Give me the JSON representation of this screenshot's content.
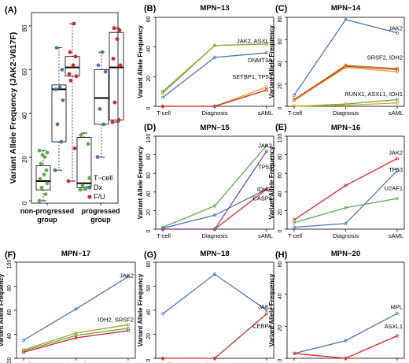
{
  "colors": {
    "tcell": "#5fac4a",
    "dx": "#4a77b5",
    "fu": "#d6252a",
    "olive": "#a5a32a",
    "purple": "#7f4da0",
    "orange": "#e6a21d",
    "axis": "#000000"
  },
  "chart_data": [
    {
      "id": "A",
      "panel_label": "(A)",
      "type": "boxplot",
      "ylabel": "Variant Allele Frequency (JAK2-V617F)",
      "ylim": [
        0,
        85
      ],
      "yticks": [
        0,
        20,
        40,
        60,
        80
      ],
      "groups": [
        {
          "label_line1": "non-progressed",
          "label_line2": "group",
          "boxes": [
            {
              "series": "T-cell",
              "q1": 5,
              "median": 9,
              "q3": 16,
              "whisker_low": 0,
              "whisker_high": 23,
              "points": [
                0,
                3,
                6,
                8,
                10,
                12,
                14,
                17,
                20,
                21,
                22,
                23
              ]
            },
            {
              "series": "Dx",
              "q1": 27,
              "median": 51,
              "q3": 53,
              "whisker_low": 14,
              "whisker_high": 70,
              "points": [
                14,
                27,
                35,
                46,
                51,
                52,
                60,
                70
              ]
            },
            {
              "series": "F/U",
              "q1": 57,
              "median": 61,
              "q3": 66,
              "whisker_low": 9,
              "whisker_high": 81,
              "points": [
                9,
                24,
                55,
                57,
                58,
                62,
                66,
                68,
                81
              ]
            }
          ]
        },
        {
          "label_line1": "progressed",
          "label_line2": "group",
          "boxes": [
            {
              "series": "T-cell",
              "q1": 6,
              "median": 8,
              "q3": 29,
              "whisker_low": 5,
              "whisker_high": 31,
              "points": [
                5,
                6,
                7,
                26,
                30
              ]
            },
            {
              "series": "Dx",
              "q1": 35,
              "median": 47,
              "q3": 60,
              "whisker_low": 20,
              "whisker_high": 68,
              "points": [
                20,
                35,
                42,
                59,
                62,
                68
              ]
            },
            {
              "series": "F/U",
              "q1": 37,
              "median": 61,
              "q3": 77,
              "whisker_low": 36,
              "whisker_high": 79,
              "points": [
                36,
                37,
                45,
                62,
                65,
                74,
                78,
                79
              ]
            }
          ]
        }
      ],
      "legend": [
        {
          "name": "T−cell",
          "color": "tcell"
        },
        {
          "name": "Dx",
          "color": "dx"
        },
        {
          "name": "F/U",
          "color": "fu"
        }
      ]
    },
    {
      "id": "B",
      "panel_label": "(B)",
      "title": "MPN−13",
      "type": "line",
      "categories": [
        "T-cell",
        "Diagnosis",
        "sAML"
      ],
      "ylabel": "Variant Allele Frequency",
      "ylim": [
        0,
        60
      ],
      "yticks": [
        0,
        20,
        40,
        60
      ],
      "series": [
        {
          "color": "tcell",
          "values": [
            10,
            41,
            42
          ]
        },
        {
          "color": "olive",
          "values": [
            9,
            41,
            42
          ]
        },
        {
          "color": "dx",
          "values": [
            6,
            33,
            36
          ]
        },
        {
          "color": "orange",
          "values": [
            0,
            0,
            13
          ]
        },
        {
          "color": "fu",
          "values": [
            0,
            0,
            11
          ]
        }
      ],
      "annotations": [
        {
          "text": "JAK2, ASXL1",
          "y": 44
        },
        {
          "text": "DNMT3A",
          "y": 31
        },
        {
          "text": "SETBP1, TP53",
          "y": 20
        }
      ]
    },
    {
      "id": "C",
      "panel_label": "(C)",
      "title": "MPN−14",
      "type": "line",
      "categories": [
        "T-cell",
        "Diagnosis",
        "sAML"
      ],
      "ylabel": "Variant Allele Frequency",
      "ylim": [
        0,
        80
      ],
      "yticks": [
        0,
        20,
        40,
        60,
        80
      ],
      "series": [
        {
          "color": "dx",
          "values": [
            10,
            78,
            66
          ]
        },
        {
          "color": "olive",
          "values": [
            6,
            37,
            34
          ]
        },
        {
          "color": "fu",
          "values": [
            6,
            36,
            33
          ]
        },
        {
          "color": "orange",
          "values": [
            5,
            35,
            31
          ]
        },
        {
          "color": "tcell",
          "values": [
            0,
            2,
            6
          ]
        },
        {
          "color": "orange",
          "values": [
            0,
            1,
            3
          ]
        }
      ],
      "annotations": [
        {
          "text": "JAK2",
          "y": 70
        },
        {
          "text": "SRSF2, IDH2",
          "y": 44
        },
        {
          "text": "RUNX1, ASXL1, IDH1",
          "y": 11
        }
      ]
    },
    {
      "id": "D",
      "panel_label": "(D)",
      "title": "MPN−15",
      "type": "line",
      "categories": [
        "T-cell",
        "Diagnosis",
        "sAML"
      ],
      "ylabel": "Variant Allele Frequency",
      "ylim": [
        0,
        100
      ],
      "yticks": [
        0,
        20,
        40,
        60,
        80,
        100
      ],
      "series": [
        {
          "color": "tcell",
          "values": [
            2,
            25,
            90
          ]
        },
        {
          "color": "dx",
          "values": [
            1,
            15,
            43
          ]
        },
        {
          "color": "fu",
          "values": [
            0,
            0,
            43
          ]
        },
        {
          "color": "purple",
          "values": [
            0,
            0,
            84
          ]
        }
      ],
      "annotations": [
        {
          "text": "JAK2",
          "y": 90
        },
        {
          "text": "TP53",
          "y": 67
        },
        {
          "text": "IDH2,",
          "y": 43
        },
        {
          "text": "CASP8",
          "y": 33
        }
      ]
    },
    {
      "id": "E",
      "panel_label": "(E)",
      "title": "MPN−16",
      "type": "line",
      "categories": [
        "T-cell",
        "Diagnosis",
        "sAML"
      ],
      "ylabel": "Variant Allele Frequency",
      "ylim": [
        0,
        100
      ],
      "yticks": [
        0,
        20,
        40,
        60,
        80,
        100
      ],
      "series": [
        {
          "color": "fu",
          "values": [
            10,
            47,
            76
          ]
        },
        {
          "color": "tcell",
          "values": [
            7,
            23,
            33
          ]
        },
        {
          "color": "dx",
          "values": [
            2,
            6,
            63
          ]
        }
      ],
      "annotations": [
        {
          "text": "JAK2",
          "y": 82
        },
        {
          "text": "TP53",
          "y": 64
        },
        {
          "text": "U2AF1",
          "y": 44
        }
      ]
    },
    {
      "id": "F",
      "panel_label": "(F)",
      "title": "MPN−17",
      "type": "line",
      "categories": [
        "T-cell",
        "Diagnosis",
        "sAML"
      ],
      "ylabel": "Variant Allele Frequency",
      "ylim": [
        20,
        100
      ],
      "yticks": [
        20,
        40,
        60,
        80,
        100
      ],
      "series": [
        {
          "color": "dx",
          "values": [
            35,
            61,
            88
          ]
        },
        {
          "color": "olive",
          "values": [
            27,
            41,
            48
          ]
        },
        {
          "color": "tcell",
          "values": [
            26,
            39,
            45
          ]
        },
        {
          "color": "fu",
          "values": [
            25,
            37,
            43
          ]
        }
      ],
      "annotations": [
        {
          "text": "JAK2",
          "y": 89
        },
        {
          "text": "IDH2, SRSF2",
          "y": 52
        }
      ]
    },
    {
      "id": "G",
      "panel_label": "(G)",
      "title": "MPN−18",
      "type": "line",
      "categories": [
        "T-cell",
        "Diagnosis",
        "sAML"
      ],
      "ylabel": "Variant Allele Frequency",
      "ylim": [
        0,
        80
      ],
      "yticks": [
        0,
        20,
        40,
        60,
        80
      ],
      "series": [
        {
          "color": "dx",
          "values": [
            37,
            70,
            40
          ]
        },
        {
          "color": "fu",
          "values": [
            0,
            0,
            37
          ]
        }
      ],
      "annotations": [
        {
          "text": "JAK2",
          "y": 43
        },
        {
          "text": "CEBPA",
          "y": 27
        }
      ]
    },
    {
      "id": "H",
      "panel_label": "(H)",
      "title": "MPN−20",
      "type": "line",
      "categories": [
        "T-cell",
        "Diagnosis",
        "sAML"
      ],
      "ylabel": "Variant Allele Frequency",
      "ylim": [
        0,
        60
      ],
      "yticks": [
        0,
        20,
        40,
        60
      ],
      "series": [
        {
          "color": "dx",
          "values": [
            3,
            11,
            28
          ]
        },
        {
          "color": "fu",
          "values": [
            3,
            0,
            14
          ]
        }
      ],
      "annotations": [
        {
          "text": "MPL",
          "y": 32
        },
        {
          "text": "ASXL1",
          "y": 20
        }
      ]
    }
  ]
}
